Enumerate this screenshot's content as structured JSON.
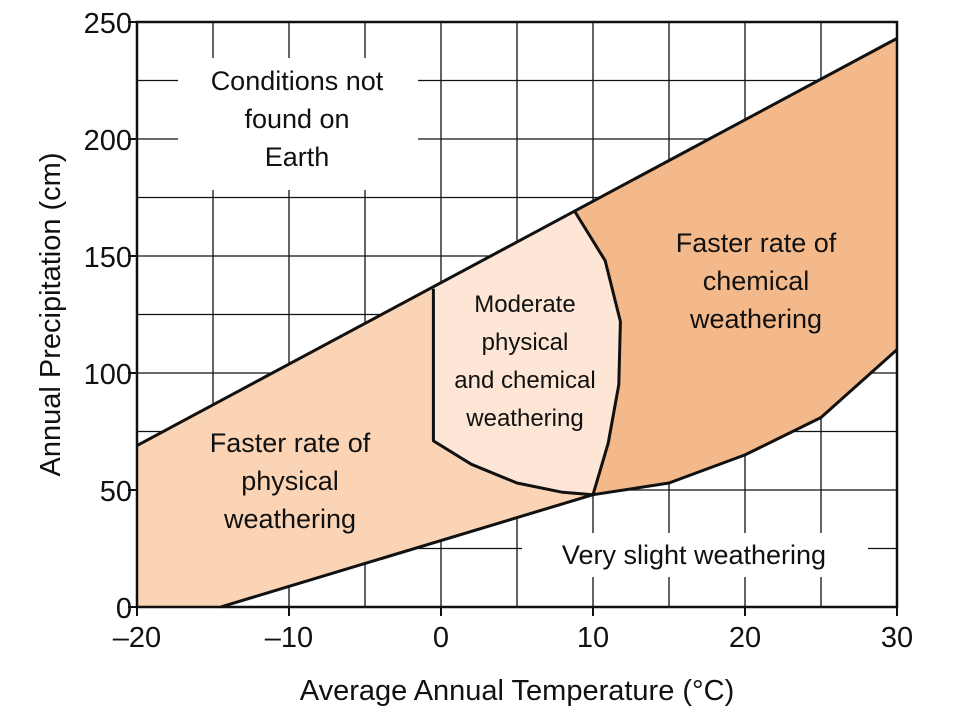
{
  "chart_data": {
    "type": "area",
    "xlabel": "Average Annual Temperature (°C)",
    "ylabel": "Annual Precipitation (cm)",
    "xlim": [
      -20,
      30
    ],
    "ylim": [
      0,
      250
    ],
    "x_ticks": [
      -20,
      -10,
      0,
      10,
      20,
      30
    ],
    "x_tick_labels": [
      "–20",
      "–10",
      "0",
      "10",
      "20",
      "30"
    ],
    "y_ticks": [
      0,
      50,
      100,
      150,
      200,
      250
    ],
    "y_tick_labels": [
      "0",
      "50",
      "100",
      "150",
      "200",
      "250"
    ],
    "grid": true,
    "grid_step": {
      "x": 5,
      "y": 25
    },
    "colors": {
      "physical": "#fad4b4",
      "moderate": "#fde6d5",
      "chemical": "#f4b98a",
      "line": "#111111",
      "grid": "#111111"
    },
    "boundaries": {
      "upper_limit": [
        [
          -20,
          69
        ],
        [
          30,
          243
        ]
      ],
      "lower_limit": [
        [
          -14.5,
          0
        ],
        [
          10,
          48
        ]
      ],
      "moderate_left": [
        [
          -0.5,
          136
        ],
        [
          -0.5,
          71
        ],
        [
          2,
          61
        ],
        [
          5,
          53
        ],
        [
          8,
          49
        ],
        [
          10,
          48
        ]
      ],
      "moderate_right": [
        [
          8.8,
          169
        ],
        [
          10.8,
          148
        ],
        [
          11.8,
          122
        ],
        [
          11.7,
          95
        ],
        [
          11,
          70
        ],
        [
          10,
          48
        ]
      ],
      "chemical_lower": [
        [
          10,
          48
        ],
        [
          15,
          53
        ],
        [
          20,
          65
        ],
        [
          25,
          81
        ],
        [
          30,
          110
        ]
      ]
    },
    "regions": [
      {
        "key": "physical",
        "label": [
          "Faster rate of",
          "physical",
          "weathering"
        ]
      },
      {
        "key": "moderate",
        "label": [
          "Moderate",
          "physical",
          "and chemical",
          "weathering"
        ]
      },
      {
        "key": "chemical",
        "label": [
          "Faster rate of",
          "chemical",
          "weathering"
        ]
      },
      {
        "key": "none",
        "label": [
          "Conditions not",
          "found on",
          "Earth"
        ]
      },
      {
        "key": "slight",
        "label": [
          "Very slight weathering"
        ]
      }
    ]
  }
}
